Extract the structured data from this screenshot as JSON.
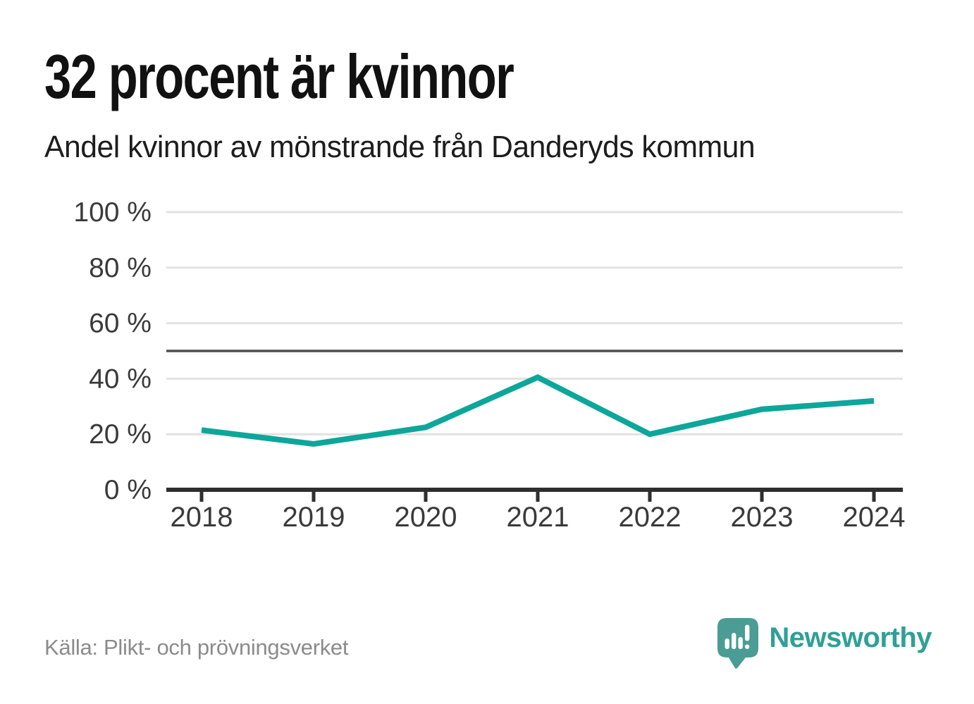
{
  "header": {
    "title": "32 procent är kvinnor",
    "subtitle": "Andel kvinnor av mönstrande från Danderyds kommun"
  },
  "chart_data": {
    "type": "line",
    "title": "32 procent är kvinnor",
    "subtitle": "Andel kvinnor av mönstrande från Danderyds kommun",
    "categories": [
      "2018",
      "2019",
      "2020",
      "2021",
      "2022",
      "2023",
      "2024"
    ],
    "values": [
      21.5,
      16.5,
      22.5,
      40.5,
      20,
      29,
      32
    ],
    "unit": "%",
    "ylim": [
      0,
      100
    ],
    "y_ticks": [
      {
        "value": 0,
        "label": "0 %"
      },
      {
        "value": 20,
        "label": "20 %"
      },
      {
        "value": 40,
        "label": "40 %"
      },
      {
        "value": 60,
        "label": "60 %"
      },
      {
        "value": 80,
        "label": "80 %"
      },
      {
        "value": 100,
        "label": "100 %"
      }
    ],
    "reference_line": 50,
    "grid": "horizontal",
    "legend": "none",
    "colors": {
      "line": "#0da69b",
      "gridline": "#e2e2e2",
      "reference": "#4d4d4d",
      "axis": "#2e2e2e",
      "tick_label": "#3a3a3a"
    }
  },
  "footer": {
    "source": "Källa: Plikt- och prövningsverket",
    "brand": {
      "name": "Newsworthy",
      "icon": "newsworthy-speech-bubble-chart-icon",
      "icon_color": "#4a9c94",
      "text_color": "#2fa096"
    }
  }
}
